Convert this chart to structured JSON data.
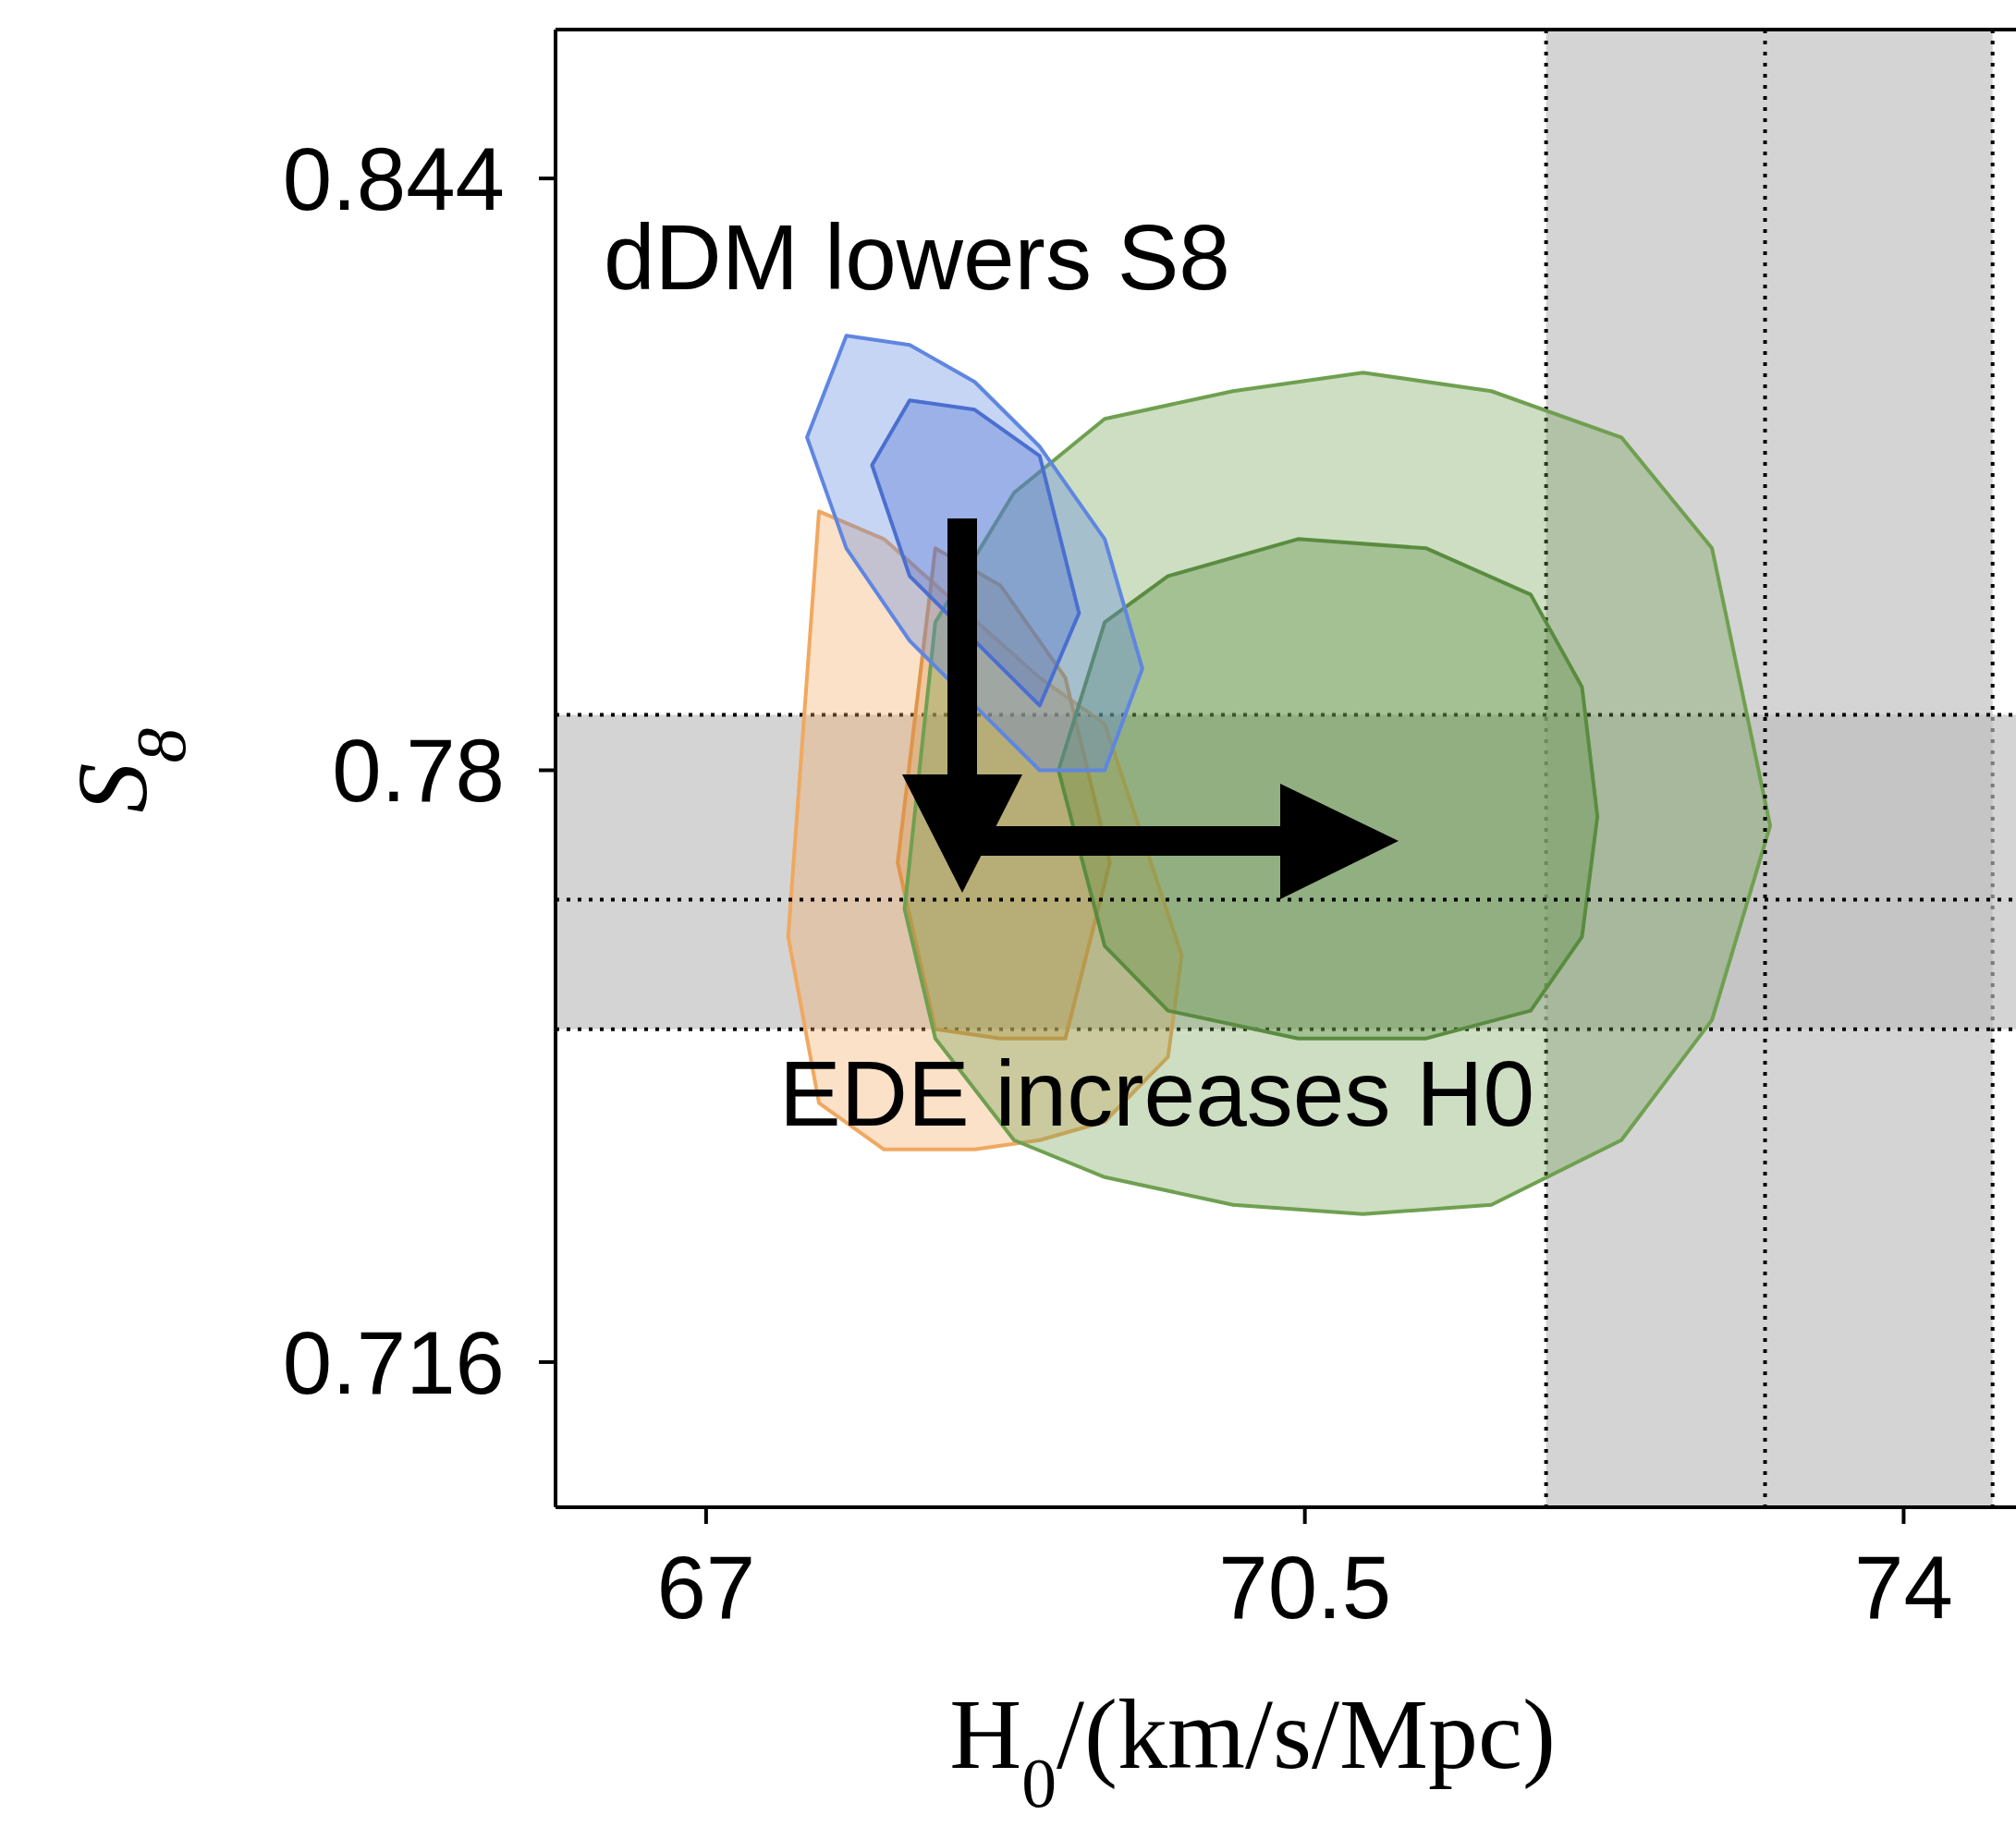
{
  "chart_data": {
    "type": "area",
    "xlabel": "H$_{0}$/(km/s/Mpc)",
    "ylabel": "S$_{8}$",
    "xlim": [
      66.12,
      74.7
    ],
    "ylim": [
      0.7003,
      0.8601
    ],
    "xticks": [
      67,
      70.5,
      74
    ],
    "yticks": [
      0.844,
      0.78,
      0.716
    ],
    "annotations": [
      "dDM lowers S8",
      "EDE increases H0"
    ],
    "bands": [
      {
        "axis": "x",
        "from": 71.91,
        "to": 74.52,
        "color": "#bdbdbd"
      },
      {
        "axis": "y",
        "from": 0.752,
        "to": 0.786,
        "color": "#bdbdbd"
      }
    ],
    "ref_lines": [
      {
        "axis": "x",
        "value": 73.19,
        "color": "#000000",
        "line_style": "dotted"
      },
      {
        "axis": "y",
        "value": 0.766,
        "color": "#000000",
        "line_style": "dotted"
      }
    ],
    "series": [
      {
        "color": "#f0a860",
        "x": [
          67.48,
          67.66,
          68.04,
          68.57,
          68.95,
          69.33,
          69.7,
          69.78,
          69.7,
          69.33,
          68.95,
          68.57,
          68.04,
          67.66
        ],
        "values": [
          0.762,
          0.808,
          0.805,
          null,
          0.79,
          0.785,
          null,
          0.76,
          0.749,
          0.742,
          0.74,
          0.739,
          0.739,
          0.744
        ]
      },
      {
        "color": "#e0954a",
        "x": [
          68.12,
          68.34,
          68.72,
          69.1,
          69.36,
          69.1,
          68.72,
          68.34
        ],
        "values": [
          0.77,
          0.804,
          0.8,
          0.79,
          0.77,
          0.751,
          0.751,
          0.752
        ]
      },
      {
        "color": "#6fa050",
        "x": [
          68.16,
          68.34,
          68.8,
          69.33,
          70.08,
          70.84,
          71.59,
          72.35,
          72.88,
          73.22,
          72.88,
          72.35,
          71.59,
          70.84,
          70.08,
          69.33,
          68.8,
          68.34
        ],
        "values": [
          0.765,
          0.796,
          0.81,
          0.818,
          0.821,
          0.823,
          0.821,
          0.816,
          0.804,
          0.774,
          0.753,
          0.74,
          0.733,
          0.732,
          0.733,
          0.736,
          0.74,
          0.751
        ]
      },
      {
        "color": "#5a8c40",
        "x": [
          69.06,
          69.33,
          69.7,
          70.46,
          71.21,
          71.82,
          72.12,
          72.21,
          72.12,
          71.82,
          71.21,
          70.46,
          69.7,
          69.33
        ],
        "values": [
          0.78,
          0.796,
          0.801,
          0.805,
          0.804,
          0.799,
          0.789,
          0.775,
          0.762,
          0.754,
          0.751,
          0.751,
          0.754,
          0.761
        ]
      },
      {
        "color": "#5f86e0",
        "x": [
          67.59,
          67.82,
          68.19,
          68.57,
          68.95,
          69.33,
          69.55,
          69.33,
          68.95,
          68.57,
          68.19,
          67.82
        ],
        "values": [
          0.816,
          0.827,
          0.826,
          0.822,
          0.815,
          0.805,
          0.791,
          0.78,
          0.78,
          null,
          0.794,
          0.804
        ]
      },
      {
        "color": "#4a6fd0",
        "x": [
          67.97,
          68.19,
          68.57,
          68.95,
          69.18,
          68.95,
          68.57,
          68.19
        ],
        "values": [
          0.813,
          0.82,
          0.819,
          0.814,
          0.797,
          0.787,
          null,
          0.801
        ]
      }
    ]
  }
}
